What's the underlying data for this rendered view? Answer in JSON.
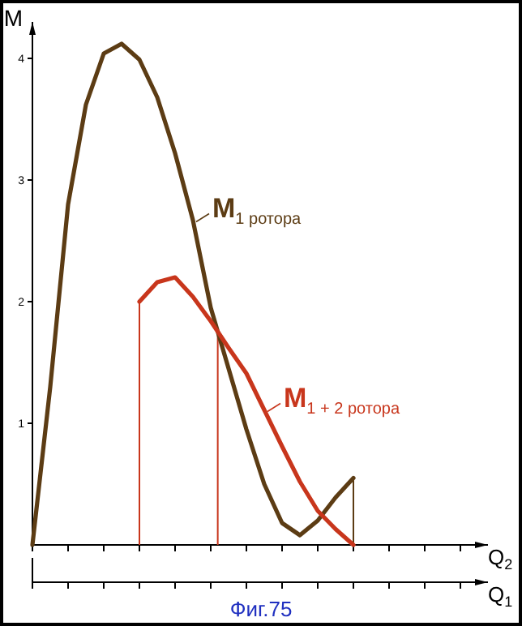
{
  "chart_data": {
    "type": "line",
    "ylabel": "M",
    "xlabel": "Q$_{2}$",
    "x2label": "Q$_{1}$",
    "categories": [
      null,
      null,
      null,
      null,
      null,
      null,
      null,
      null,
      null,
      null,
      null,
      null,
      null,
      null,
      null,
      null,
      null,
      null,
      null,
      null,
      null,
      null,
      null,
      null,
      null,
      null
    ],
    "ylim": [
      0,
      4.3
    ],
    "yticks": [
      1,
      2,
      3,
      4
    ],
    "tick_labels": "y",
    "legend": "right",
    "marker": "none",
    "line_style": "solid",
    "series": [
      {
        "name": "M$_{1 ротора}$",
        "color": "#5c3c14",
        "values": [
          0,
          1.3,
          2.8,
          3.62,
          4.04,
          4.12,
          3.99,
          3.68,
          3.22,
          2.67,
          1.95,
          1.45,
          0.95,
          0.5,
          0.18,
          0.08,
          0.2,
          0.39,
          0.55,
          null,
          null,
          null,
          null,
          null,
          null,
          null
        ]
      },
      {
        "name": "M$_{1 + 2 ротора}$",
        "color": "#c8361c",
        "values": [
          null,
          null,
          null,
          null,
          null,
          null,
          2.0,
          2.16,
          2.2,
          2.04,
          1.84,
          1.62,
          1.41,
          1.11,
          0.81,
          0.52,
          0.28,
          0.13,
          0,
          null,
          null,
          null,
          null,
          null,
          null,
          null
        ]
      }
    ],
    "annotations": [
      "Фиг.75"
    ]
  }
}
